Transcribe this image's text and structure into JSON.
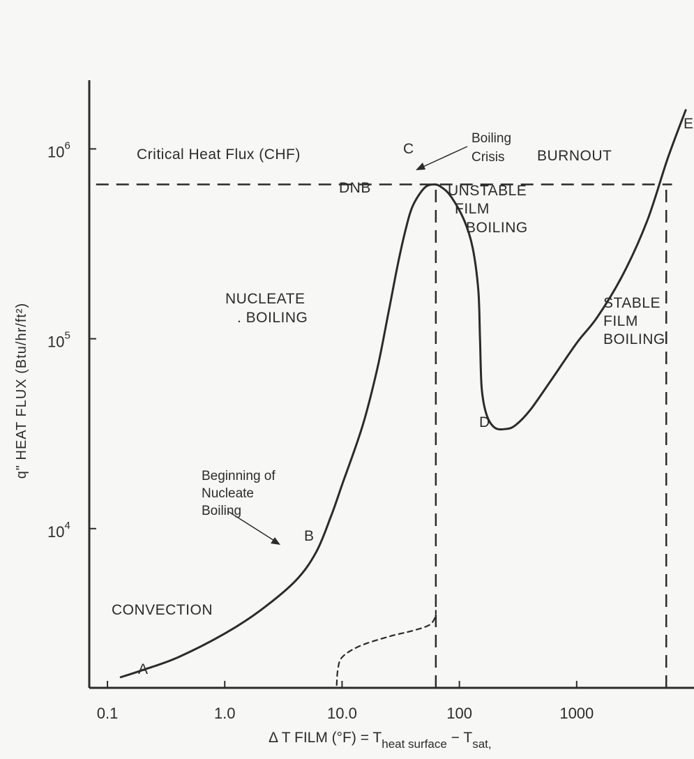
{
  "chart_data": {
    "type": "line",
    "x_scale": "log",
    "y_scale": "log",
    "xlim": [
      0.07,
      10000
    ],
    "ylim": [
      1450,
      2300000
    ],
    "x_ticks": [
      0.1,
      1,
      10,
      100,
      1000
    ],
    "x_tick_labels": [
      "0.1",
      "1.0",
      "10.0",
      "100",
      "1000"
    ],
    "y_ticks": [
      1000000,
      100000,
      10000
    ],
    "y_tick_labels": [
      "10",
      "10",
      "10"
    ],
    "y_tick_exponents": [
      "6",
      "5",
      "4"
    ],
    "ylabel": "q\" HEAT FLUX (Btu/hr/ft²)",
    "xlabel": {
      "main": "Δ T FILM (°F) = T",
      "sub1": "heat surface",
      "mid": " − T",
      "sub2": "sat,"
    },
    "grid": false,
    "legend": "none",
    "series": [
      {
        "style": "solid",
        "points": [
          [
            0.13,
            1650
          ],
          [
            0.2,
            1800
          ],
          [
            0.4,
            2100
          ],
          [
            1,
            2800
          ],
          [
            2,
            3700
          ],
          [
            4,
            5300
          ],
          [
            6,
            7500
          ],
          [
            8,
            11500
          ],
          [
            10,
            17000
          ],
          [
            15,
            35000
          ],
          [
            20,
            70000
          ],
          [
            25,
            140000
          ],
          [
            30,
            250000
          ],
          [
            35,
            380000
          ],
          [
            40,
            500000
          ],
          [
            50,
            620000
          ],
          [
            60,
            650000
          ],
          [
            70,
            630000
          ],
          [
            85,
            560000
          ],
          [
            110,
            420000
          ],
          [
            130,
            300000
          ],
          [
            145,
            180000
          ],
          [
            150,
            100000
          ],
          [
            155,
            55000
          ],
          [
            170,
            40000
          ],
          [
            200,
            34000
          ],
          [
            250,
            33500
          ],
          [
            300,
            35000
          ],
          [
            400,
            42000
          ],
          [
            600,
            60000
          ],
          [
            1000,
            95000
          ],
          [
            1500,
            130000
          ],
          [
            2500,
            220000
          ],
          [
            4000,
            420000
          ],
          [
            6000,
            900000
          ],
          [
            8500,
            1600000
          ]
        ]
      },
      {
        "style": "dashed",
        "points": [
          [
            9,
            1500
          ],
          [
            9.2,
            1800
          ],
          [
            10,
            2100
          ],
          [
            14,
            2400
          ],
          [
            25,
            2700
          ],
          [
            40,
            2900
          ],
          [
            55,
            3100
          ],
          [
            62,
            3400
          ],
          [
            63,
            3700
          ]
        ]
      }
    ],
    "reference_lines": [
      {
        "axis": "y",
        "value": 650000,
        "from_x": 0.08,
        "to_x": 6500
      },
      {
        "axis": "x",
        "value": 63,
        "from_y": 1450,
        "to_y": 650000
      },
      {
        "axis": "x",
        "value": 5800,
        "from_y": 1450,
        "to_y": 620000
      }
    ],
    "annotations": {
      "chf": "Critical Heat Flux (CHF)",
      "burnout": "BURNOUT",
      "boiling_crisis_1": "Boiling",
      "boiling_crisis_2": "Crisis",
      "dnb": "DNB",
      "unstable_1": "UNSTABLE",
      "unstable_2": "FILM",
      "unstable_3": "BOILING",
      "nucleate_1": "NUCLEATE",
      "nucleate_2": ". BOILING",
      "stable_1": "STABLE",
      "stable_2": "FILM",
      "stable_3": "BOILING",
      "beginning_1": "Beginning of",
      "beginning_2": "Nucleate",
      "beginning_3": "Boiling",
      "convection": "CONVECTION",
      "point_a": "A",
      "point_b": "B",
      "point_c": "C",
      "point_d": "D",
      "point_e": "E"
    }
  }
}
